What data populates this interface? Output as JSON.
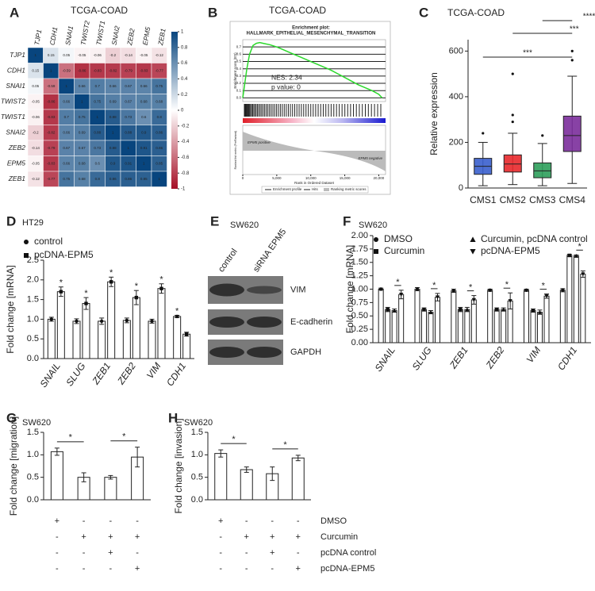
{
  "chart_data": [
    {
      "type": "heatmap",
      "panel": "A",
      "title": "TCGA-COAD",
      "labels": [
        "TJP1",
        "CDH1",
        "SNAI1",
        "TWIST2",
        "TWIST1",
        "SNAI2",
        "ZEB2",
        "EPM5",
        "ZEB1"
      ],
      "matrix": [
        [
          1,
          0.15,
          0.05,
          -0.05,
          -0.06,
          -0.2,
          -0.14,
          -0.05,
          -0.12
        ],
        [
          0.15,
          1,
          -0.59,
          -0.86,
          -0.83,
          -0.82,
          -0.79,
          -0.83,
          -0.77
        ],
        [
          0.05,
          -0.59,
          1,
          0.66,
          0.7,
          0.66,
          0.67,
          0.66,
          0.75
        ],
        [
          -0.05,
          -0.86,
          0.66,
          1,
          0.75,
          0.69,
          0.67,
          0.68,
          0.68
        ],
        [
          -0.06,
          -0.83,
          0.7,
          0.75,
          1,
          0.88,
          0.73,
          0.6,
          0.8
        ],
        [
          -0.2,
          -0.82,
          0.66,
          0.69,
          0.88,
          1,
          0.88,
          0.9,
          0.86
        ],
        [
          -0.14,
          -0.79,
          0.67,
          0.67,
          0.73,
          0.88,
          1,
          0.91,
          0.86
        ],
        [
          -0.05,
          -0.83,
          0.66,
          0.68,
          0.6,
          0.9,
          0.91,
          1,
          0.85
        ],
        [
          -0.12,
          -0.77,
          0.75,
          0.68,
          0.8,
          0.86,
          0.86,
          0.85,
          1
        ]
      ],
      "zlim": [
        -1,
        1
      ],
      "zticks": [
        1,
        0.8,
        0.6,
        0.4,
        0.2,
        0,
        -0.2,
        -0.4,
        -0.6,
        -0.8,
        -1
      ],
      "colors": [
        "#a50f26",
        "#ffffff",
        "#08457e"
      ]
    },
    {
      "type": "line",
      "panel": "B",
      "title": "TCGA-COAD",
      "plot_title": "Enrichment plot:",
      "plot_subtitle": "HALLMARK_EPITHELIAL_MESENCHYMAL_TRANSITION",
      "annotations": [
        "NES:  2.34",
        "p value:  0"
      ],
      "ylabel": "Enrichment score (ES)",
      "ylabel2": "Ranked list metric (PreRanked)",
      "xlabel": "Rank in Ordered Dataset",
      "group_labels": [
        "EPM5 positive",
        "EPM5 negative"
      ],
      "legend": [
        "Enrichment profile",
        "Hits",
        "Ranking metric scores"
      ],
      "x": [
        0,
        300,
        600,
        1000,
        1500,
        2000,
        2500,
        3000,
        4000,
        5000,
        6000,
        7000,
        8000,
        9000,
        10000,
        11000,
        12000,
        13000,
        14000,
        15000,
        16000,
        17000,
        18000,
        19000,
        20000,
        20500
      ],
      "values": [
        0,
        0.2,
        0.4,
        0.6,
        0.72,
        0.75,
        0.76,
        0.75,
        0.73,
        0.7,
        0.66,
        0.62,
        0.58,
        0.54,
        0.5,
        0.46,
        0.42,
        0.38,
        0.33,
        0.28,
        0.23,
        0.18,
        0.14,
        0.1,
        0.05,
        0
      ],
      "color": "#2bd92b",
      "xlim": [
        0,
        21000
      ],
      "xticks": [
        0,
        {
          "value": 5000,
          "label": "5,000"
        },
        {
          "value": 10000,
          "label": "10,000"
        },
        {
          "value": 15000,
          "label": "15,000"
        },
        {
          "value": 20000,
          "label": "20,000"
        }
      ],
      "ylim": [
        -0.05,
        0.8
      ],
      "yticks": [
        {
          "value": 0,
          "label": "0.0"
        },
        0.1,
        0.2,
        0.3,
        0.4,
        0.5,
        0.6,
        0.7
      ]
    },
    {
      "type": "box",
      "panel": "C",
      "title": "TCGA-COAD",
      "ylabel": "Relative expression",
      "categories": [
        "CMS1",
        "CMS2",
        "CMS3",
        "CMS4"
      ],
      "colors": [
        "#3a5fcd",
        "#e8282b",
        "#2e9e5b",
        "#7b2d9b"
      ],
      "boxes": [
        {
          "min": 10,
          "q1": 60,
          "median": 95,
          "q3": 130,
          "max": 200
        },
        {
          "min": 15,
          "q1": 70,
          "median": 105,
          "q3": 145,
          "max": 240
        },
        {
          "min": 10,
          "q1": 45,
          "median": 75,
          "q3": 110,
          "max": 195
        },
        {
          "min": 20,
          "q1": 160,
          "median": 230,
          "q3": 315,
          "max": 490
        }
      ],
      "outliers": [
        [
          240
        ],
        [
          290,
          320,
          500
        ],
        [
          230
        ],
        [
          560,
          600
        ]
      ],
      "comparisons": [
        {
          "label": "***",
          "between": [
            "CMS1",
            "CMS4"
          ]
        },
        {
          "label": "***",
          "between": [
            "CMS2",
            "CMS4"
          ]
        },
        {
          "label": "****",
          "between": [
            "CMS3",
            "CMS4"
          ]
        }
      ],
      "ylim": [
        0,
        650
      ],
      "yticks": [
        0,
        200,
        400,
        600
      ]
    },
    {
      "type": "bar",
      "panel": "D",
      "title": "HT29",
      "ylabel": "Fold change [mRNA]",
      "categories": [
        "SNAIL",
        "SLUG",
        "ZEB1",
        "ZEB2",
        "VIM",
        "CDH1"
      ],
      "series": [
        {
          "name": "control",
          "marker": "circle",
          "values": [
            1.0,
            0.95,
            0.95,
            0.97,
            0.95,
            1.07
          ],
          "errors": [
            0.05,
            0.06,
            0.08,
            0.06,
            0.05,
            0.03
          ],
          "stars": [
            null,
            null,
            null,
            null,
            null,
            "*"
          ]
        },
        {
          "name": "pcDNA-EPM5",
          "marker": "square",
          "values": [
            1.7,
            1.4,
            1.95,
            1.55,
            1.78,
            0.62
          ],
          "errors": [
            0.12,
            0.15,
            0.12,
            0.18,
            0.12,
            0.05
          ],
          "stars": [
            "*",
            "*",
            "*",
            "*",
            "*",
            null
          ]
        }
      ],
      "ylim": [
        0,
        2.5
      ],
      "yticks": [
        {
          "value": 0,
          "label": "0.0"
        },
        0.5,
        {
          "value": 1,
          "label": "1.0"
        },
        1.5,
        {
          "value": 2,
          "label": "2.0"
        },
        2.5
      ]
    },
    {
      "type": "blot",
      "panel": "E",
      "title": "SW620",
      "lanes": [
        "control",
        "siRNA EPM5"
      ],
      "bands": [
        "VIM",
        "E-cadherin",
        "GAPDH"
      ]
    },
    {
      "type": "bar",
      "panel": "F",
      "title": "SW620",
      "ylabel": "Fold change [mRNA]",
      "categories": [
        "SNAIL",
        "SLUG",
        "ZEB1",
        "ZEB2",
        "VIM",
        "CDH1"
      ],
      "series": [
        {
          "name": "DMSO",
          "marker": "circle",
          "values": [
            1.0,
            1.0,
            0.97,
            0.98,
            0.98,
            0.98
          ],
          "errors": [
            0.02,
            0.03,
            0.03,
            0.02,
            0.02,
            0.03
          ]
        },
        {
          "name": "Curcumin",
          "marker": "square",
          "values": [
            0.62,
            0.62,
            0.62,
            0.62,
            0.6,
            1.63
          ],
          "errors": [
            0.04,
            0.03,
            0.04,
            0.03,
            0.03,
            0.02
          ]
        },
        {
          "name": "Curcumin, pcDNA control",
          "marker": "triangle",
          "values": [
            0.6,
            0.57,
            0.62,
            0.62,
            0.57,
            1.62
          ],
          "errors": [
            0.03,
            0.03,
            0.04,
            0.03,
            0.04,
            0.02
          ]
        },
        {
          "name": "pcDNA-EPM5",
          "marker": "triangle-down",
          "values": [
            0.9,
            0.85,
            0.8,
            0.78,
            0.87,
            1.28
          ],
          "errors": [
            0.08,
            0.07,
            0.08,
            0.15,
            0.04,
            0.06
          ],
          "stars": [
            "*",
            "*",
            "*",
            "*",
            "*",
            "*"
          ]
        }
      ],
      "ylim": [
        0,
        2
      ],
      "yticks": [
        {
          "value": 0,
          "label": "0.00"
        },
        0.25,
        {
          "value": 0.5,
          "label": "0.50"
        },
        0.75,
        {
          "value": 1,
          "label": "1.00"
        },
        1.25,
        {
          "value": 1.5,
          "label": "1.50"
        },
        1.75,
        {
          "value": 2,
          "label": "2.00"
        }
      ]
    },
    {
      "type": "bar",
      "panel": "G",
      "title": "SW620",
      "ylabel": "Fold change [migration]",
      "categories": [
        null,
        null,
        null,
        null
      ],
      "series": [
        {
          "values": [
            1.07,
            0.5,
            0.5,
            0.95
          ],
          "errors": [
            0.08,
            0.1,
            0.04,
            0.22
          ]
        }
      ],
      "comparisons": [
        {
          "label": "*",
          "between": [
            0,
            1
          ]
        },
        {
          "label": "*",
          "between": [
            2,
            3
          ]
        }
      ],
      "conditions": [
        [
          "+",
          "-",
          "-",
          "-"
        ],
        [
          "-",
          "+",
          "+",
          "+"
        ],
        [
          "-",
          "-",
          "+",
          "-"
        ],
        [
          "-",
          "-",
          "-",
          "+"
        ]
      ],
      "ylim": [
        0,
        1.5
      ],
      "yticks": [
        {
          "value": 0,
          "label": "0.0"
        },
        0.5,
        {
          "value": 1,
          "label": "1.0"
        },
        1.5
      ]
    },
    {
      "type": "bar",
      "panel": "H",
      "title": "SW620",
      "ylabel": "Fold change [invasion]",
      "categories": [
        null,
        null,
        null,
        null
      ],
      "series": [
        {
          "values": [
            1.03,
            0.67,
            0.58,
            0.93
          ],
          "errors": [
            0.08,
            0.06,
            0.15,
            0.06
          ]
        }
      ],
      "comparisons": [
        {
          "label": "*",
          "between": [
            0,
            1
          ]
        },
        {
          "label": "*",
          "between": [
            2,
            3
          ]
        }
      ],
      "conditions": [
        [
          "+",
          "-",
          "-",
          "-"
        ],
        [
          "-",
          "+",
          "+",
          "+"
        ],
        [
          "-",
          "-",
          "+",
          "-"
        ],
        [
          "-",
          "-",
          "-",
          "+"
        ]
      ],
      "condition_labels": [
        "DMSO",
        "Curcumin",
        "pcDNA control",
        "pcDNA-EPM5"
      ],
      "ylim": [
        0,
        1.5
      ],
      "yticks": [
        {
          "value": 0,
          "label": "0.0"
        },
        0.5,
        {
          "value": 1,
          "label": "1.0"
        },
        1.5
      ]
    }
  ]
}
